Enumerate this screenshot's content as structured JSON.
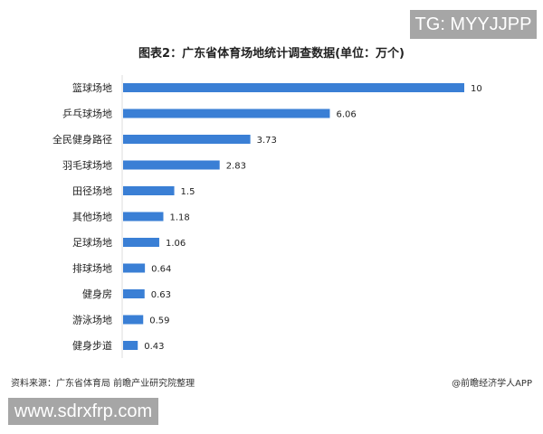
{
  "watermark_top": "TG: MYYJJPP",
  "watermark_bottom": "www.sdrxfrp.com",
  "source": "资料来源：广东省体育局 前瞻产业研究院整理",
  "credit": "@前瞻经济学人APP",
  "chart_data": {
    "type": "bar",
    "orientation": "horizontal",
    "title": "图表2：广东省体育场地统计调查数据(单位：万个)",
    "categories": [
      "篮球场地",
      "乒乓球场地",
      "全民健身路径",
      "羽毛球场地",
      "田径场地",
      "其他场地",
      "足球场地",
      "排球场地",
      "健身房",
      "游泳场地",
      "健身步道"
    ],
    "values": [
      10,
      6.06,
      3.73,
      2.83,
      1.5,
      1.18,
      1.06,
      0.64,
      0.63,
      0.59,
      0.43
    ],
    "value_labels": [
      "10",
      "6.06",
      "3.73",
      "2.83",
      "1.5",
      "1.18",
      "1.06",
      "0.64",
      "0.63",
      "0.59",
      "0.43"
    ],
    "xlim": [
      0,
      10
    ],
    "grid": false,
    "bar_color": "#3a7fd5"
  }
}
